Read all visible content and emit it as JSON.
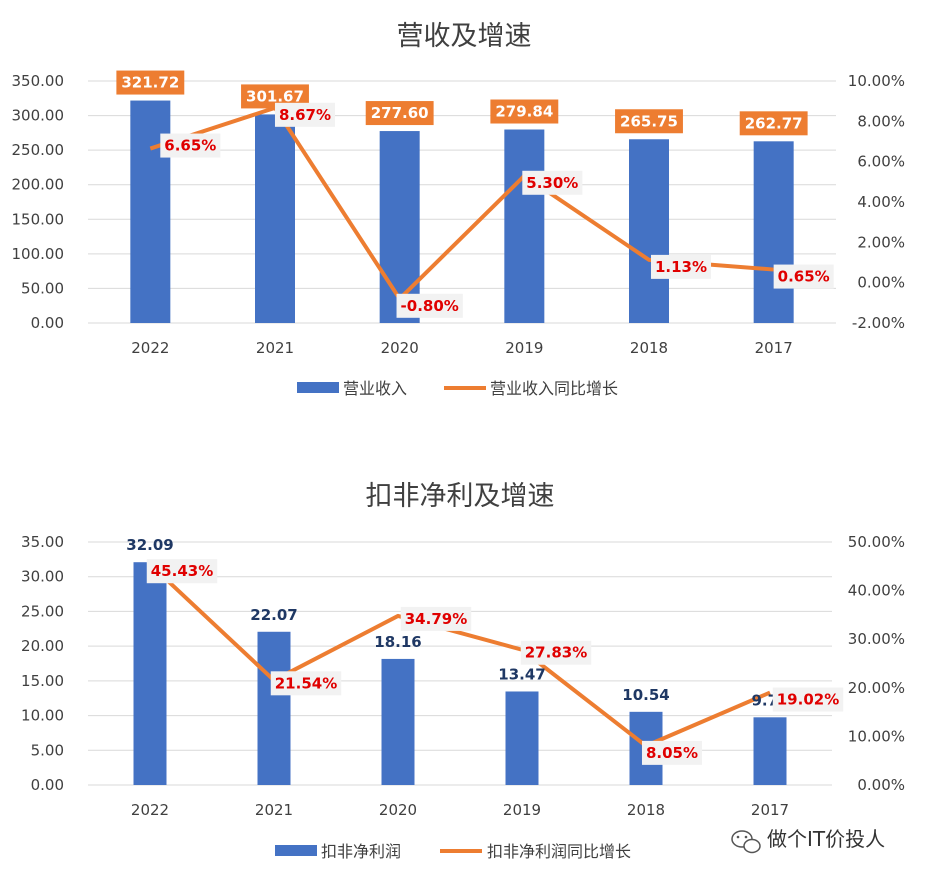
{
  "colors": {
    "bar": "#4472C4",
    "line": "#ED7D31",
    "grid": "#d9d9d9",
    "pct": "#e00000",
    "label_box": "#ED7D31",
    "label_text_dark": "#1F3864"
  },
  "watermark": {
    "icon": "wechat-icon",
    "text": "做个IT价投人"
  },
  "chart_data": [
    {
      "type": "bar",
      "title": "营收及增速",
      "categories": [
        "2022",
        "2021",
        "2020",
        "2019",
        "2018",
        "2017"
      ],
      "series": [
        {
          "name": "营业收入",
          "type": "bar",
          "axis": "left",
          "values": [
            321.72,
            301.67,
            277.6,
            279.84,
            265.75,
            262.77
          ],
          "labels": [
            "321.72",
            "301.67",
            "277.60",
            "279.84",
            "265.75",
            "262.77"
          ]
        },
        {
          "name": "营业收入同比增长",
          "type": "line",
          "axis": "right",
          "values": [
            6.65,
            8.67,
            -0.8,
            5.3,
            1.13,
            0.65
          ],
          "labels": [
            "6.65%",
            "8.67%",
            "-0.80%",
            "5.30%",
            "1.13%",
            "0.65%"
          ]
        }
      ],
      "ylim": [
        0,
        350
      ],
      "yticks": [
        "0.00",
        "50.00",
        "100.00",
        "150.00",
        "200.00",
        "250.00",
        "300.00",
        "350.00"
      ],
      "y2lim": [
        -2,
        10
      ],
      "y2ticks": [
        "-2.00%",
        "0.00%",
        "2.00%",
        "4.00%",
        "6.00%",
        "8.00%",
        "10.00%"
      ],
      "grid": true,
      "legend": "bottom"
    },
    {
      "type": "bar",
      "title": "扣非净利及增速",
      "categories": [
        "2022",
        "2021",
        "2020",
        "2019",
        "2018",
        "2017"
      ],
      "series": [
        {
          "name": "扣非净利润",
          "type": "bar",
          "axis": "left",
          "values": [
            32.09,
            22.07,
            18.16,
            13.47,
            10.54,
            9.75
          ],
          "labels": [
            "32.09",
            "22.07",
            "18.16",
            "13.47",
            "10.54",
            "9.75"
          ]
        },
        {
          "name": "扣非净利润同比增长",
          "type": "line",
          "axis": "right",
          "values": [
            45.43,
            21.54,
            34.79,
            27.83,
            8.05,
            19.02
          ],
          "labels": [
            "45.43%",
            "21.54%",
            "34.79%",
            "27.83%",
            "8.05%",
            "19.02%"
          ]
        }
      ],
      "ylim": [
        0,
        35
      ],
      "yticks": [
        "0.00",
        "5.00",
        "10.00",
        "15.00",
        "20.00",
        "25.00",
        "30.00",
        "35.00"
      ],
      "y2lim": [
        0,
        50
      ],
      "y2ticks": [
        "0.00%",
        "10.00%",
        "20.00%",
        "30.00%",
        "40.00%",
        "50.00%"
      ],
      "grid": true,
      "legend": "bottom"
    }
  ]
}
